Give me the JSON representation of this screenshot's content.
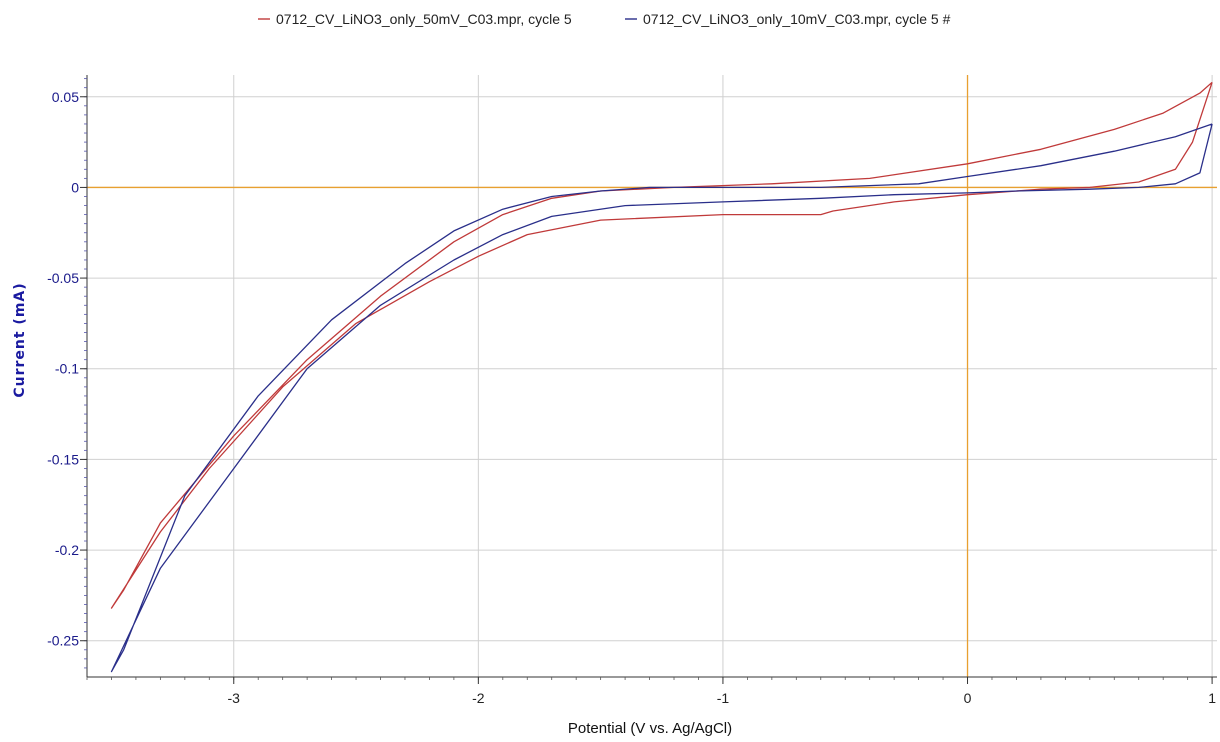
{
  "chart_data": {
    "type": "line",
    "title": "",
    "xlabel": "Potential (V vs. Ag/AgCl)",
    "ylabel": "Current (mA)",
    "xlim": [
      -3.6,
      1.02
    ],
    "ylim": [
      -0.27,
      0.062
    ],
    "xticks": [
      -3,
      -2,
      -1,
      0,
      1
    ],
    "yticks": [
      0.05,
      0,
      -0.05,
      -0.1,
      -0.15,
      -0.2,
      -0.25
    ],
    "xtick_labels": [
      "-3",
      "-2",
      "-1",
      "0",
      "1"
    ],
    "ytick_labels": [
      "0.05",
      "0",
      "-0.05",
      "-0.1",
      "-0.15",
      "-0.2",
      "-0.25"
    ],
    "grid": true,
    "zero_lines": {
      "x": 0,
      "y": 0,
      "color": "#e8a030"
    },
    "legend_position": "top-center",
    "series": [
      {
        "name": "0712_CV_LiNO3_only_50mV_C03.mpr, cycle 5",
        "color": "#c03a3a",
        "x": [
          1.0,
          0.92,
          0.85,
          0.7,
          0.5,
          0.3,
          0.0,
          -0.3,
          -0.55,
          -0.6,
          -1.0,
          -1.5,
          -1.8,
          -2.0,
          -2.2,
          -2.5,
          -2.8,
          -3.1,
          -3.3,
          -3.5,
          -3.45,
          -3.3,
          -3.0,
          -2.7,
          -2.4,
          -2.1,
          -1.9,
          -1.7,
          -1.5,
          -1.2,
          -0.8,
          -0.4,
          0.0,
          0.3,
          0.6,
          0.8,
          0.95,
          1.0
        ],
        "y": [
          0.058,
          0.025,
          0.01,
          0.003,
          0.0,
          -0.001,
          -0.004,
          -0.008,
          -0.013,
          -0.015,
          -0.015,
          -0.018,
          -0.026,
          -0.038,
          -0.052,
          -0.075,
          -0.11,
          -0.155,
          -0.19,
          -0.232,
          -0.222,
          -0.185,
          -0.137,
          -0.095,
          -0.06,
          -0.03,
          -0.015,
          -0.006,
          -0.002,
          0.0,
          0.002,
          0.005,
          0.013,
          0.021,
          0.032,
          0.041,
          0.052,
          0.058
        ]
      },
      {
        "name": "0712_CV_LiNO3_only_10mV_C03.mpr, cycle 5 #",
        "color": "#2a2f8a",
        "x": [
          1.0,
          0.95,
          0.85,
          0.7,
          0.5,
          0.2,
          0.0,
          -0.3,
          -0.6,
          -1.0,
          -1.4,
          -1.7,
          -1.9,
          -2.1,
          -2.4,
          -2.7,
          -3.0,
          -3.3,
          -3.5,
          -3.45,
          -3.2,
          -2.9,
          -2.6,
          -2.3,
          -2.1,
          -1.9,
          -1.7,
          -1.5,
          -1.3,
          -1.0,
          -0.6,
          -0.2,
          0.0,
          0.3,
          0.6,
          0.85,
          1.0
        ],
        "y": [
          0.035,
          0.008,
          0.002,
          0.0,
          -0.001,
          -0.002,
          -0.003,
          -0.004,
          -0.006,
          -0.008,
          -0.01,
          -0.016,
          -0.026,
          -0.04,
          -0.065,
          -0.1,
          -0.155,
          -0.21,
          -0.267,
          -0.255,
          -0.17,
          -0.115,
          -0.073,
          -0.042,
          -0.024,
          -0.012,
          -0.005,
          -0.002,
          0.0,
          0.0,
          0.0,
          0.002,
          0.006,
          0.012,
          0.02,
          0.028,
          0.035
        ]
      }
    ]
  }
}
